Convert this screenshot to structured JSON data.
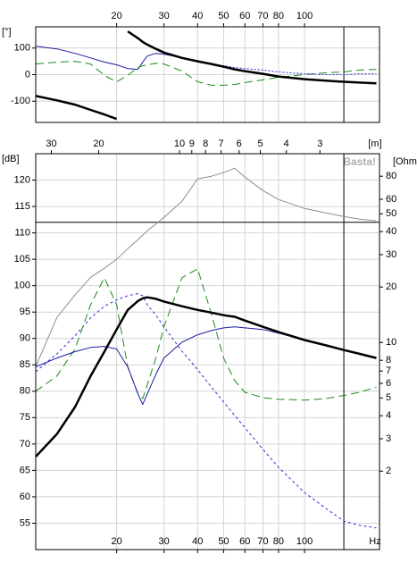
{
  "chart_data": [
    {
      "type": "line",
      "ylabel": "[°]",
      "log_x": true,
      "xlim": [
        10,
        190
      ],
      "xticks": [
        20,
        30,
        40,
        50,
        60,
        70,
        80,
        100
      ],
      "ylim": [
        -180,
        180
      ],
      "yticks": [
        -100,
        0,
        100
      ],
      "grid": true,
      "vline": 140,
      "x": [
        10,
        12,
        14,
        16,
        18,
        20,
        22,
        24,
        25,
        26,
        28,
        30,
        35,
        40,
        45,
        50,
        55,
        60,
        70,
        80,
        100,
        120,
        140,
        160,
        185
      ],
      "series": [
        {
          "color": "#1a1aa0",
          "width": 1,
          "values": [
            107,
            97,
            80,
            63,
            47,
            37,
            23,
            20,
            47,
            70,
            80,
            77,
            63,
            53,
            40,
            30,
            20,
            13,
            3,
            -7,
            -17,
            -23,
            -27,
            -30,
            -33
          ]
        },
        {
          "color": "#1a8a1a",
          "width": 1,
          "dash": "9,5",
          "values": [
            40,
            47,
            50,
            40,
            -3,
            -27,
            -3,
            27,
            33,
            37,
            43,
            40,
            13,
            -27,
            -40,
            -40,
            -37,
            -30,
            -20,
            -10,
            0,
            7,
            10,
            17,
            20
          ]
        },
        {
          "color": "#2a2ae0",
          "width": 1,
          "dash": "2,2",
          "values": [
            null,
            null,
            null,
            null,
            null,
            null,
            null,
            null,
            null,
            null,
            null,
            null,
            null,
            50,
            40,
            33,
            27,
            23,
            17,
            10,
            3,
            0,
            0,
            3,
            3
          ]
        },
        {
          "color": "#000000",
          "width": 2.5,
          "values": [
            -80,
            -97,
            -113,
            -133,
            -150,
            -167,
            163,
            137,
            123,
            113,
            97,
            83,
            63,
            50,
            40,
            30,
            20,
            13,
            3,
            -7,
            -17,
            -23,
            -27,
            -30,
            -33
          ]
        }
      ]
    },
    {
      "type": "line",
      "ylabel": "[dB]",
      "y2label": "[Ohm]",
      "x2label": "[m]",
      "xunit": "Hz",
      "watermark": "Basta!",
      "log_x": true,
      "xlim": [
        10,
        190
      ],
      "xticks": [
        20,
        30,
        40,
        50,
        60,
        70,
        80,
        100
      ],
      "x2lim": [
        34.3,
        1.8
      ],
      "x2ticks": [
        30,
        20,
        10,
        9,
        8,
        7,
        6,
        5,
        4,
        3
      ],
      "ylim": [
        50,
        125
      ],
      "yticks": [
        55,
        60,
        65,
        70,
        75,
        80,
        85,
        90,
        95,
        100,
        105,
        110,
        115,
        120
      ],
      "log_y2": true,
      "y2lim": [
        0.75,
        106
      ],
      "y2ticks": [
        2,
        3,
        4,
        5,
        6,
        7,
        8,
        10,
        20,
        30,
        40,
        50,
        60,
        80
      ],
      "grid": true,
      "hline": 112,
      "vline": 140,
      "x": [
        10,
        12,
        14,
        16,
        18,
        20,
        22,
        24,
        25,
        26,
        28,
        30,
        35,
        40,
        45,
        50,
        55,
        60,
        70,
        80,
        100,
        120,
        140,
        160,
        185
      ],
      "series": [
        {
          "color": "#8c8c8c",
          "width": 1,
          "axis": "y2",
          "values": [
            7.4,
            13.7,
            18.1,
            22.6,
            25.3,
            28.3,
            32.3,
            36.2,
            38.2,
            40.4,
            44.0,
            47.8,
            58.5,
            77.4,
            80,
            83.6,
            88.4,
            79,
            66.9,
            59.8,
            53.4,
            50.6,
            48.3,
            46.7,
            45.8
          ]
        },
        {
          "color": "#2a2ae0",
          "width": 1,
          "dash": "3,3",
          "values": [
            83.7,
            87.1,
            90.5,
            93.9,
            96.1,
            97.3,
            98.1,
            98.5,
            98.1,
            96.4,
            94.4,
            92.2,
            87.6,
            84.1,
            80.8,
            78,
            75.4,
            73.1,
            69,
            65.6,
            60.8,
            57.8,
            55.4,
            54.6,
            54.1
          ]
        },
        {
          "color": "#1a8a1a",
          "width": 1,
          "dash": "9,5",
          "values": [
            80,
            82.9,
            88,
            96.4,
            101.5,
            96.4,
            84.6,
            79.5,
            78.6,
            81.2,
            86.3,
            92.2,
            101.5,
            103.2,
            94.7,
            86.3,
            82,
            79.8,
            78.8,
            78.5,
            78.3,
            78.6,
            79.2,
            79.8,
            80.8
          ]
        },
        {
          "color": "#1a1aa0",
          "width": 1,
          "values": [
            84.6,
            86.3,
            87.5,
            88.3,
            88.5,
            88,
            84.6,
            79.5,
            77.5,
            79.5,
            83.2,
            86.3,
            89.3,
            90.7,
            91.5,
            92,
            92.2,
            92,
            91.7,
            91,
            89.7,
            88.7,
            87.8,
            87.1,
            86.3
          ]
        },
        {
          "color": "#000000",
          "width": 2.5,
          "values": [
            67.6,
            71.9,
            77,
            82.9,
            87.5,
            91.7,
            95.4,
            97.1,
            97.6,
            97.8,
            97.5,
            97,
            96.1,
            95.4,
            94.9,
            94.4,
            94.1,
            93.4,
            92.2,
            91.2,
            89.7,
            88.7,
            87.8,
            87.1,
            86.3
          ]
        }
      ]
    }
  ]
}
